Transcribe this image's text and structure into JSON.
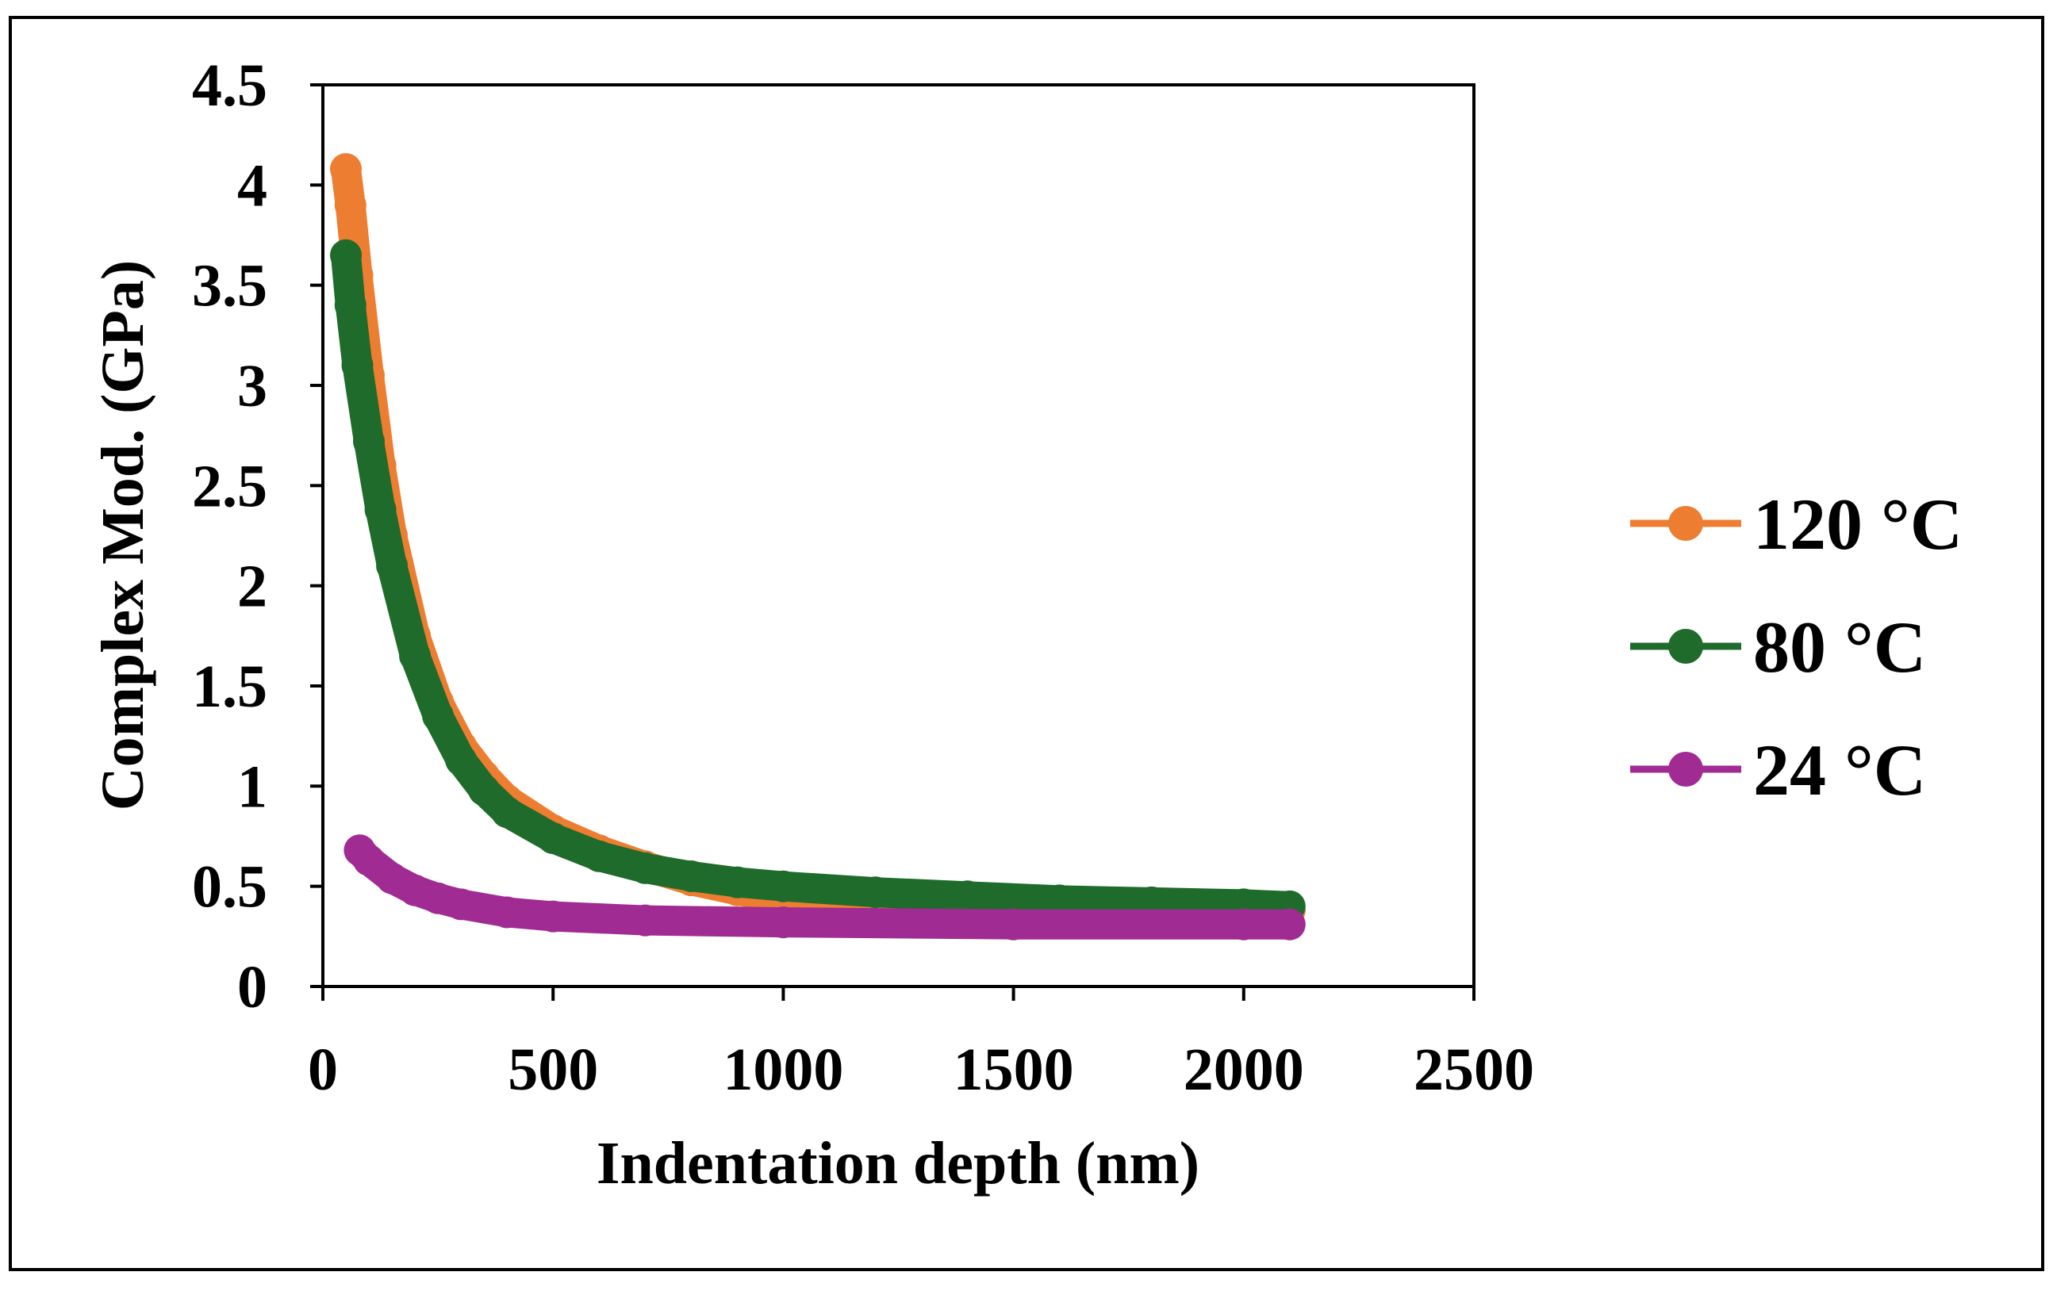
{
  "chart_data": {
    "type": "scatter",
    "title": "",
    "xlabel": "Indentation depth (nm)",
    "ylabel": "Complex Mod. (GPa)",
    "xlim": [
      0,
      2500
    ],
    "ylim": [
      0,
      4.5
    ],
    "xticks": [
      "0",
      "500",
      "1000",
      "1500",
      "2000",
      "2500"
    ],
    "yticks": [
      "0",
      "0.5",
      "1",
      "1.5",
      "2",
      "2.5",
      "3",
      "3.5",
      "4",
      "4.5"
    ],
    "grid": false,
    "legend_position": "right",
    "series": [
      {
        "name": "120 °C",
        "color": "#ED7D31",
        "x": [
          50,
          60,
          75,
          100,
          125,
          150,
          200,
          250,
          300,
          350,
          400,
          500,
          600,
          700,
          800,
          900,
          1000,
          1200,
          1400,
          1600,
          1800,
          2000,
          2100
        ],
        "y": [
          4.08,
          3.9,
          3.55,
          3.05,
          2.6,
          2.25,
          1.75,
          1.42,
          1.2,
          1.05,
          0.93,
          0.78,
          0.68,
          0.6,
          0.53,
          0.48,
          0.44,
          0.42,
          0.41,
          0.4,
          0.39,
          0.39,
          0.38
        ]
      },
      {
        "name": "80 °C",
        "color": "#1E6B2B",
        "x": [
          50,
          60,
          75,
          100,
          125,
          150,
          200,
          250,
          300,
          350,
          400,
          500,
          600,
          700,
          800,
          900,
          1000,
          1200,
          1400,
          1600,
          1800,
          2000,
          2100
        ],
        "y": [
          3.65,
          3.4,
          3.1,
          2.72,
          2.38,
          2.1,
          1.65,
          1.35,
          1.13,
          0.98,
          0.87,
          0.74,
          0.65,
          0.59,
          0.55,
          0.52,
          0.5,
          0.47,
          0.45,
          0.43,
          0.42,
          0.41,
          0.4
        ]
      },
      {
        "name": "24 °C",
        "color": "#A02B93",
        "x": [
          80,
          100,
          150,
          200,
          250,
          300,
          400,
          500,
          700,
          1000,
          1500,
          2000,
          2100
        ],
        "y": [
          0.68,
          0.63,
          0.54,
          0.48,
          0.44,
          0.41,
          0.37,
          0.35,
          0.33,
          0.32,
          0.31,
          0.31,
          0.31
        ]
      }
    ]
  }
}
